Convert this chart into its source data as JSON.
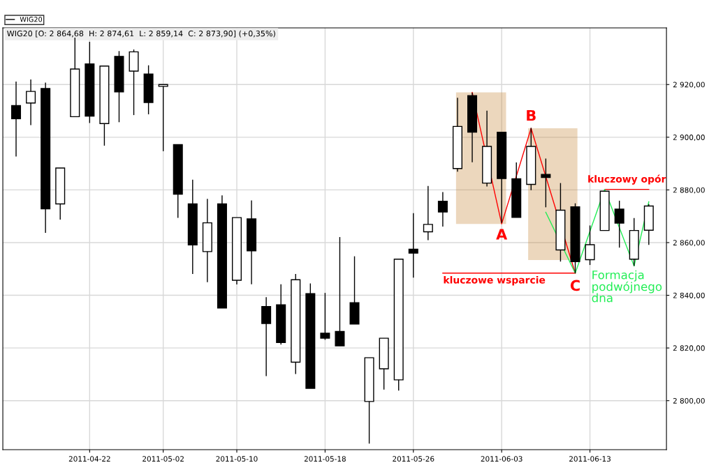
{
  "chart_data": {
    "type": "candlestick",
    "title": "WIG20 [O: 2 864,68  H: 2 874,61  L: 2 859,14  C: 2 873,90] (+0,35%)",
    "categories": [
      null,
      null,
      null,
      null,
      null,
      "2011-04-22",
      null,
      null,
      null,
      null,
      "2011-05-02",
      null,
      null,
      null,
      null,
      "2011-05-10",
      null,
      null,
      null,
      null,
      null,
      "2011-05-18",
      null,
      null,
      null,
      null,
      null,
      "2011-05-26",
      null,
      null,
      null,
      null,
      null,
      "2011-06-03",
      null,
      null,
      null,
      null,
      null,
      "2011-06-13",
      null,
      null,
      null,
      null
    ],
    "ylim": [
      2781.4,
      2941.5
    ],
    "yticks": [
      {
        "value": 2800,
        "label": "2 800,00"
      },
      {
        "value": 2820,
        "label": "2 820,00"
      },
      {
        "value": 2840,
        "label": "2 840,00"
      },
      {
        "value": 2860,
        "label": "2 860,00"
      },
      {
        "value": 2880,
        "label": "2 880,00"
      },
      {
        "value": 2900,
        "label": "2 900,00"
      },
      {
        "value": 2920,
        "label": "2 920,00"
      }
    ],
    "grid": true,
    "legend": "top left",
    "series": [
      {
        "type": "line",
        "color": "#ff0000",
        "values": [
          null,
          null,
          null,
          null,
          null,
          null,
          null,
          null,
          null,
          null,
          null,
          null,
          null,
          null,
          null,
          null,
          null,
          null,
          null,
          null,
          null,
          null,
          null,
          null,
          null,
          null,
          null,
          null,
          null,
          null,
          null,
          2917.0,
          null,
          2867.1,
          null,
          2903.4,
          null,
          null,
          2848.4,
          null,
          null,
          null,
          null,
          null
        ]
      },
      {
        "type": "line",
        "color": "#ff0000",
        "values": [
          null,
          null,
          null,
          null,
          null,
          null,
          null,
          null,
          null,
          null,
          null,
          null,
          null,
          null,
          null,
          null,
          null,
          null,
          null,
          null,
          null,
          null,
          null,
          null,
          null,
          null,
          null,
          null,
          null,
          2848.4,
          null,
          null,
          null,
          null,
          null,
          null,
          null,
          null,
          2848.4,
          null,
          null,
          null,
          null,
          null
        ]
      },
      {
        "type": "line",
        "color": "#ff0000",
        "values": [
          null,
          null,
          null,
          null,
          null,
          null,
          null,
          null,
          null,
          null,
          null,
          null,
          null,
          null,
          null,
          null,
          null,
          null,
          null,
          null,
          null,
          null,
          null,
          null,
          null,
          null,
          null,
          null,
          null,
          null,
          null,
          null,
          null,
          null,
          null,
          null,
          null,
          null,
          null,
          null,
          2880.2,
          null,
          null,
          2880.2
        ]
      },
      {
        "type": "line",
        "color": "#22ee55",
        "values": [
          null,
          null,
          null,
          null,
          null,
          null,
          null,
          null,
          null,
          null,
          null,
          null,
          null,
          null,
          null,
          null,
          null,
          null,
          null,
          null,
          null,
          null,
          null,
          null,
          null,
          null,
          null,
          null,
          null,
          null,
          null,
          null,
          null,
          null,
          null,
          null,
          2871.5,
          null,
          2848.4,
          null,
          2880.2,
          null,
          2851.1,
          2875.5
        ]
      },
      {
        "name": "WIG20",
        "ohlc": [
          [
            2912.0,
            2921.1,
            2892.7,
            2907.0
          ],
          [
            2913.0,
            2921.9,
            2904.6,
            2917.4
          ],
          [
            2918.5,
            2920.7,
            2863.7,
            2872.8
          ],
          [
            2874.7,
            2888.3,
            2868.7,
            2888.3
          ],
          [
            2907.8,
            2937.8,
            2907.8,
            2925.9
          ],
          [
            2927.8,
            2936.2,
            2905.4,
            2908.0
          ],
          [
            2905.2,
            2927.0,
            2896.8,
            2927.0
          ],
          [
            2930.7,
            2932.7,
            2905.7,
            2917.2
          ],
          [
            2925.1,
            2933.3,
            2908.4,
            2932.4
          ],
          [
            2924.0,
            2927.3,
            2908.7,
            2913.2
          ],
          [
            2919.3,
            2920.0,
            2894.7,
            2920.0
          ],
          [
            2897.2,
            2897.2,
            2869.4,
            2878.4
          ],
          [
            2874.7,
            2883.9,
            2848.1,
            2859.1
          ],
          [
            2856.6,
            2876.6,
            2845.0,
            2867.5
          ],
          [
            2874.7,
            2877.9,
            2835.2,
            2835.2
          ],
          [
            2845.7,
            2869.5,
            2844.1,
            2869.5
          ],
          [
            2869.0,
            2876.0,
            2844.2,
            2856.9
          ],
          [
            2835.7,
            2839.3,
            2809.3,
            2829.3
          ],
          [
            2836.4,
            2844.2,
            2821.3,
            2822.1
          ],
          [
            2814.6,
            2848.1,
            2810.1,
            2845.9
          ],
          [
            2840.6,
            2844.5,
            2804.7,
            2804.7
          ],
          [
            2825.6,
            2840.9,
            2823.1,
            2823.7
          ],
          [
            2826.3,
            2862.1,
            2820.8,
            2820.8
          ],
          [
            2837.2,
            2854.8,
            2829.1,
            2829.1
          ],
          [
            2799.7,
            2816.3,
            2783.7,
            2816.3
          ],
          [
            2812.1,
            2823.7,
            2804.2,
            2823.7
          ],
          [
            2807.9,
            2853.7,
            2803.8,
            2853.7
          ],
          [
            2857.5,
            2871.2,
            2846.7,
            2856.0
          ],
          [
            2864.1,
            2881.5,
            2860.9,
            2866.9
          ],
          [
            2875.7,
            2879.2,
            2866.1,
            2871.6
          ],
          [
            2888.1,
            2915.0,
            2886.9,
            2904.1
          ],
          [
            2915.8,
            2916.9,
            2890.5,
            2901.9
          ],
          [
            2882.6,
            2910.1,
            2881.3,
            2896.5
          ],
          [
            2901.9,
            2901.9,
            2867.5,
            2884.3
          ],
          [
            2884.2,
            2890.4,
            2869.6,
            2869.6
          ],
          [
            2882.1,
            2903.5,
            2879.9,
            2896.5
          ],
          [
            2885.9,
            2891.9,
            2873.4,
            2884.7
          ],
          [
            2857.2,
            2882.6,
            2852.8,
            2872.3
          ],
          [
            2873.6,
            2874.9,
            2848.4,
            2852.8
          ],
          [
            2853.5,
            2866.5,
            2851.5,
            2859.2
          ],
          [
            2864.6,
            2879.5,
            2864.6,
            2879.5
          ],
          [
            2872.7,
            2875.9,
            2858.1,
            2867.4
          ],
          [
            2853.7,
            2869.3,
            2851.1,
            2864.6
          ],
          [
            2864.68,
            2874.61,
            2859.14,
            2873.9
          ]
        ]
      }
    ],
    "annotations": [
      "A",
      "B",
      "C",
      "kluczowe wsparcie",
      "kluczowy opór",
      "Formacja\npodwójnego\ndna"
    ]
  }
}
